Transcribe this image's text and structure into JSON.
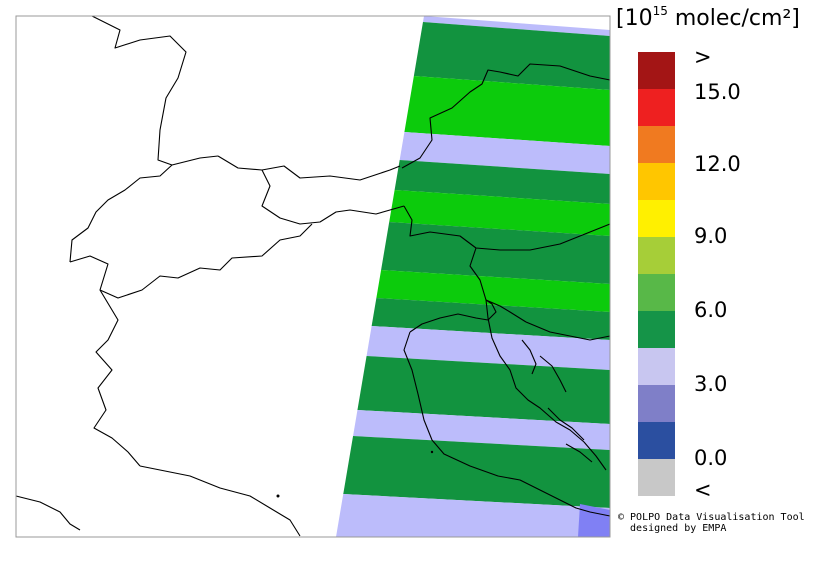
{
  "legend": {
    "unit_open": "[",
    "unit_base": "10",
    "unit_exp": "15",
    "unit_rest": " molec/cm²",
    "unit_close": "]",
    "labels": [
      ">",
      "15.0",
      "12.0",
      "9.0",
      "6.0",
      "3.0",
      "0.0",
      "<"
    ],
    "colors": [
      "#a31515",
      "#ee2020",
      "#f07a20",
      "#ffc600",
      "#fff000",
      "#a6ce38",
      "#58b848",
      "#159448",
      "#c8c6f0",
      "#7f7fc8",
      "#2b4fa0",
      "#c8c8c8"
    ]
  },
  "map": {
    "colors": {
      "dark_green": "#12933f",
      "bright_green": "#0ccb0c",
      "lavender": "#bcbcfb",
      "blue": "#8080f4",
      "border": "#000000",
      "frame": "#999999"
    }
  },
  "credit": {
    "line1": "© POLPO Data Visualisation Tool",
    "line2": "  designed by EMPA"
  }
}
